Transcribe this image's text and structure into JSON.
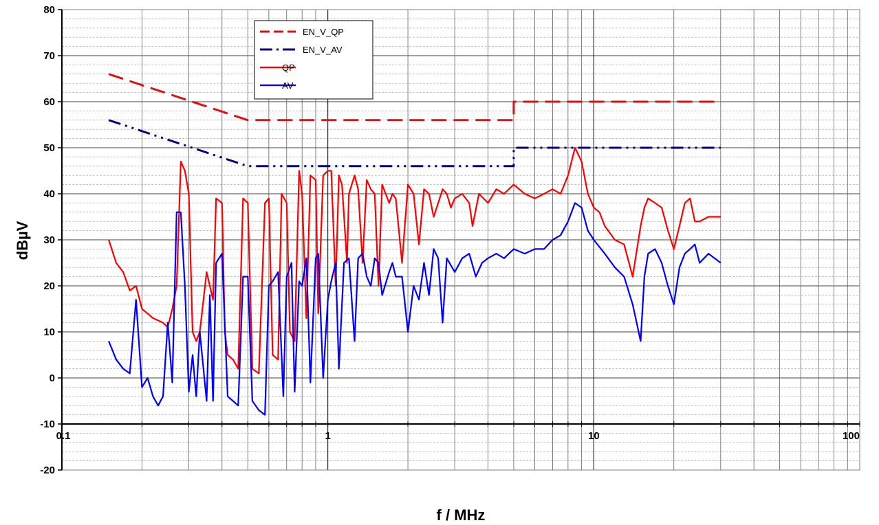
{
  "chart_data": {
    "type": "line",
    "xlabel": "f / MHz",
    "ylabel": "dBµV",
    "x_scale": "log",
    "xlim": [
      0.1,
      100
    ],
    "ylim": [
      -20,
      80
    ],
    "x_ticks": [
      "0.1",
      "1",
      "10",
      "100"
    ],
    "y_ticks": [
      "-20",
      "-10",
      "0",
      "10",
      "20",
      "30",
      "40",
      "50",
      "60",
      "70",
      "80"
    ],
    "grid": true,
    "legend_position": "top-left",
    "series": [
      {
        "name": "EN_V_QP",
        "color": "#e01010",
        "style": "dashed",
        "x": [
          0.15,
          0.5,
          0.5,
          5,
          5,
          30
        ],
        "y": [
          66,
          56,
          56,
          56,
          60,
          60
        ]
      },
      {
        "name": "EN_V_AV",
        "color": "#000080",
        "style": "dash-dot-dot",
        "x": [
          0.15,
          0.5,
          0.5,
          5,
          5,
          30
        ],
        "y": [
          56,
          46,
          46,
          46,
          50,
          50
        ]
      },
      {
        "name": "QP",
        "color": "#ff0000",
        "style": "solid",
        "x": [
          0.15,
          0.16,
          0.17,
          0.18,
          0.19,
          0.2,
          0.21,
          0.22,
          0.24,
          0.25,
          0.26,
          0.27,
          0.28,
          0.29,
          0.3,
          0.31,
          0.32,
          0.33,
          0.35,
          0.36,
          0.37,
          0.38,
          0.4,
          0.41,
          0.42,
          0.44,
          0.45,
          0.46,
          0.48,
          0.5,
          0.52,
          0.55,
          0.58,
          0.6,
          0.62,
          0.65,
          0.67,
          0.7,
          0.72,
          0.75,
          0.78,
          0.8,
          0.83,
          0.86,
          0.9,
          0.92,
          0.96,
          1.0,
          1.03,
          1.07,
          1.1,
          1.13,
          1.18,
          1.2,
          1.26,
          1.3,
          1.35,
          1.4,
          1.45,
          1.5,
          1.55,
          1.6,
          1.7,
          1.75,
          1.8,
          1.9,
          2.0,
          2.1,
          2.2,
          2.3,
          2.4,
          2.5,
          2.6,
          2.7,
          2.8,
          2.9,
          3.0,
          3.2,
          3.4,
          3.5,
          3.7,
          4.0,
          4.3,
          4.6,
          5.0,
          5.5,
          6.0,
          6.5,
          7.0,
          7.5,
          8.0,
          8.5,
          9.0,
          9.5,
          10.0,
          10.5,
          11.0,
          12.0,
          13.0,
          14.0,
          15.0,
          15.5,
          16.0,
          17.0,
          18.0,
          19.0,
          20.0,
          21.0,
          22.0,
          23.0,
          24.0,
          25.0,
          27.0,
          30.0
        ],
        "y": [
          30,
          25,
          23,
          19,
          20,
          15,
          14,
          13,
          12,
          11,
          15,
          20,
          47,
          45,
          40,
          10,
          8,
          10,
          23,
          20,
          17,
          39,
          38,
          10,
          5,
          4,
          3,
          2,
          39,
          38,
          2,
          1,
          38,
          39,
          5,
          4,
          40,
          38,
          10,
          8,
          45,
          40,
          13,
          44,
          43,
          14,
          44,
          45,
          45,
          20,
          44,
          42,
          25,
          40,
          44,
          41,
          25,
          43,
          41,
          40,
          20,
          42,
          38,
          40,
          39,
          25,
          42,
          40,
          29,
          41,
          40,
          35,
          38,
          41,
          40,
          37,
          39,
          40,
          38,
          33,
          40,
          38,
          41,
          40,
          42,
          40,
          39,
          40,
          41,
          40,
          44,
          50,
          47,
          40,
          37,
          36,
          33,
          30,
          29,
          22,
          33,
          37,
          39,
          38,
          37,
          32,
          28,
          33,
          38,
          39,
          34,
          34,
          35,
          35
        ]
      },
      {
        "name": "AV",
        "color": "#0000ff",
        "style": "solid",
        "x": [
          0.15,
          0.16,
          0.17,
          0.18,
          0.19,
          0.2,
          0.21,
          0.22,
          0.23,
          0.24,
          0.25,
          0.26,
          0.27,
          0.28,
          0.29,
          0.3,
          0.31,
          0.32,
          0.33,
          0.35,
          0.36,
          0.37,
          0.38,
          0.4,
          0.42,
          0.44,
          0.46,
          0.48,
          0.5,
          0.52,
          0.55,
          0.58,
          0.6,
          0.62,
          0.65,
          0.68,
          0.7,
          0.73,
          0.75,
          0.78,
          0.8,
          0.83,
          0.86,
          0.9,
          0.92,
          0.96,
          1.0,
          1.03,
          1.07,
          1.1,
          1.15,
          1.2,
          1.26,
          1.3,
          1.35,
          1.4,
          1.45,
          1.5,
          1.55,
          1.6,
          1.7,
          1.75,
          1.8,
          1.9,
          2.0,
          2.1,
          2.2,
          2.3,
          2.4,
          2.5,
          2.6,
          2.7,
          2.8,
          3.0,
          3.2,
          3.4,
          3.6,
          3.8,
          4.0,
          4.3,
          4.6,
          5.0,
          5.5,
          6.0,
          6.5,
          7.0,
          7.5,
          8.0,
          8.5,
          9.0,
          9.5,
          10.0,
          11.0,
          12.0,
          13.0,
          14.0,
          15.0,
          15.5,
          16.0,
          17.0,
          18.0,
          19.0,
          20.0,
          21.0,
          22.0,
          23.0,
          24.0,
          25.0,
          27.0,
          30.0
        ],
        "y": [
          8,
          4,
          2,
          1,
          17,
          -2,
          0,
          -4,
          -6,
          -4,
          12,
          -1,
          36,
          36,
          20,
          -3,
          5,
          -4,
          10,
          -5,
          18,
          -5,
          25,
          27,
          -4,
          -5,
          -6,
          22,
          22,
          -5,
          -7,
          -8,
          20,
          21,
          23,
          -4,
          22,
          25,
          -3,
          21,
          20,
          26,
          -1,
          26,
          27,
          0,
          17,
          21,
          25,
          2,
          25,
          26,
          8,
          26,
          27,
          22,
          20,
          26,
          25,
          18,
          23,
          25,
          22,
          22,
          10,
          20,
          17,
          25,
          18,
          28,
          26,
          12,
          26,
          23,
          26,
          27,
          22,
          25,
          26,
          27,
          26,
          28,
          27,
          28,
          28,
          30,
          31,
          34,
          38,
          37,
          32,
          30,
          27,
          24,
          22,
          16,
          8,
          22,
          27,
          28,
          25,
          20,
          16,
          24,
          27,
          28,
          29,
          25,
          27,
          25
        ]
      }
    ]
  }
}
